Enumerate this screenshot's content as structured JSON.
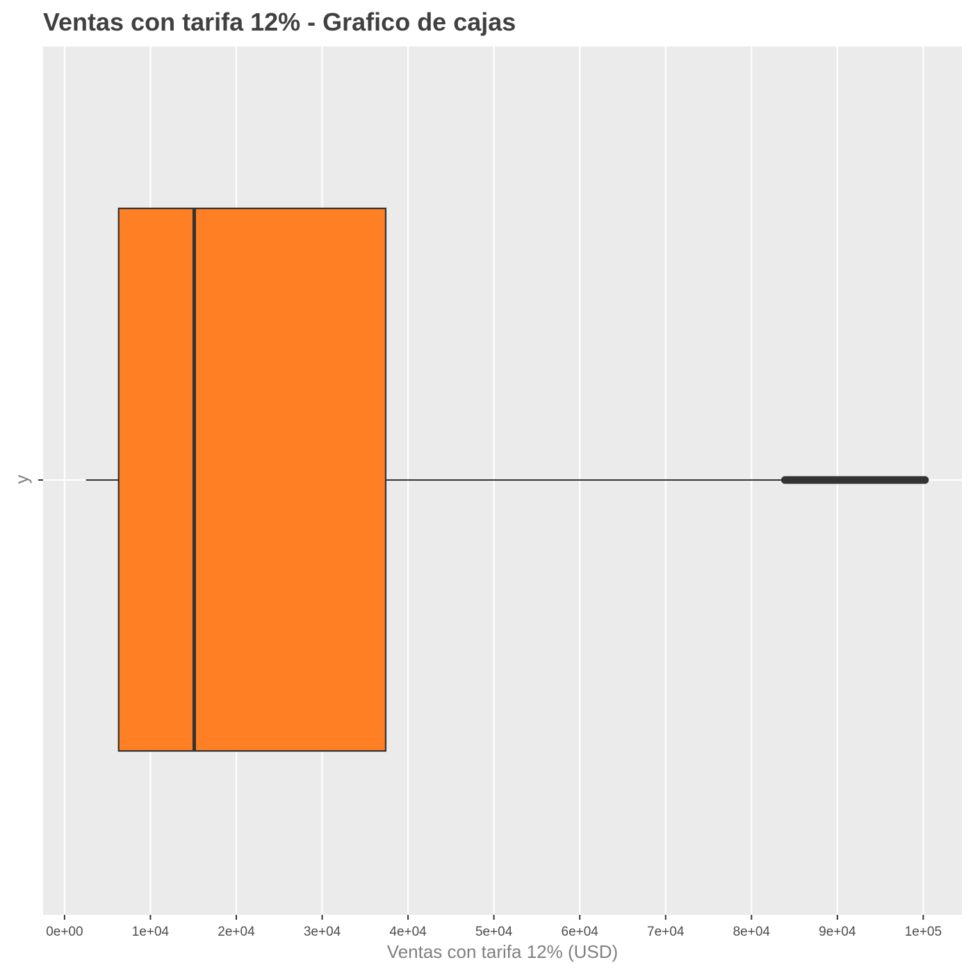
{
  "chart_data": {
    "type": "boxplot",
    "orientation": "horizontal",
    "title": "Ventas con tarifa 12% - Grafico de cajas",
    "xlabel": "Ventas con tarifa 12% (USD)",
    "ylabel": "y",
    "xlim": [
      -2500,
      104500
    ],
    "x_ticks": [
      0,
      10000,
      20000,
      30000,
      40000,
      50000,
      60000,
      70000,
      80000,
      90000,
      100000
    ],
    "x_tick_labels": [
      "0e+00",
      "1e+04",
      "2e+04",
      "3e+04",
      "4e+04",
      "5e+04",
      "6e+04",
      "7e+04",
      "8e+04",
      "9e+04",
      "1e+05"
    ],
    "y_categories": [
      ""
    ],
    "box": {
      "whisker_low": 2500,
      "q1": 6300,
      "median": 15100,
      "q3": 37400,
      "whisker_high": 83900,
      "outlier_range": [
        83900,
        100200
      ]
    },
    "grid": true,
    "legend": "none",
    "colors": {
      "panel_background": "#ebebeb",
      "grid": "#ffffff",
      "box_fill": "#ff7f24",
      "box_stroke": "#333333",
      "outlier": "#333333"
    }
  }
}
